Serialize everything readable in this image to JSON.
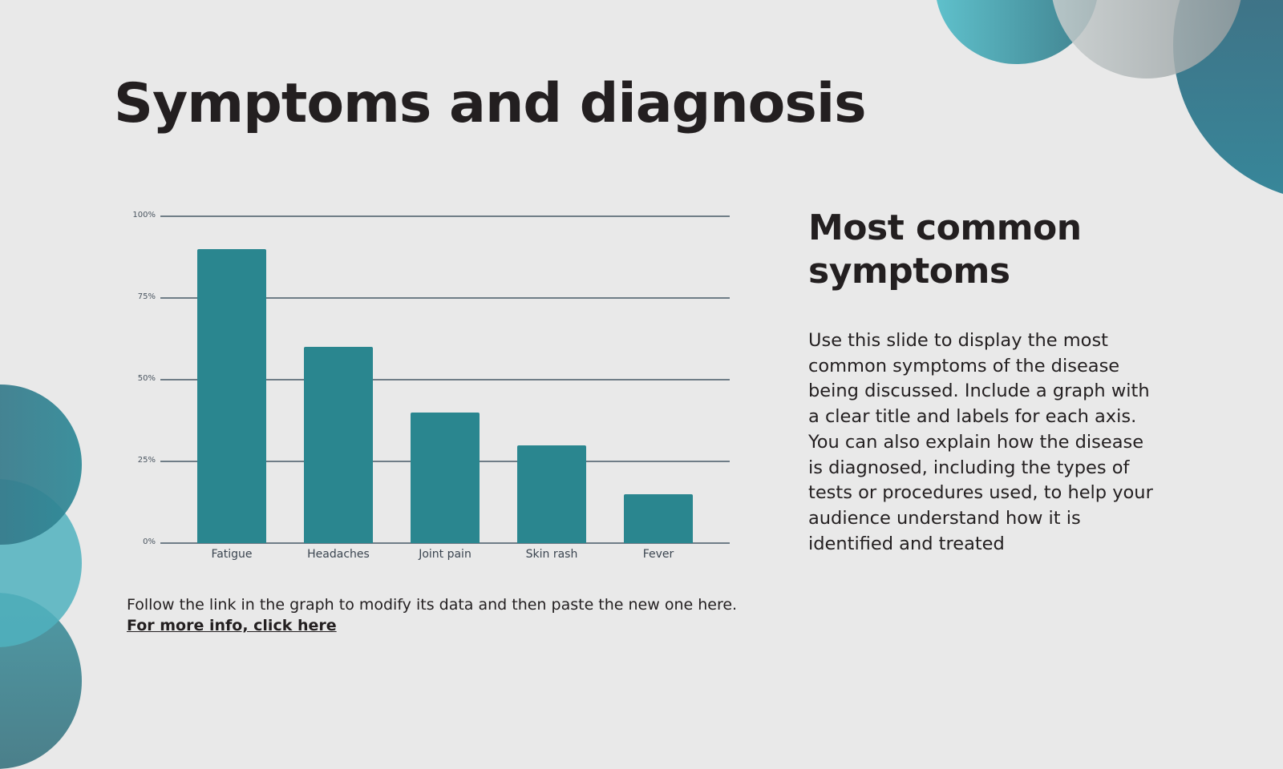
{
  "slide": {
    "title": "Symptoms and diagnosis",
    "subtitle_line1": "Most common",
    "subtitle_line2": "symptoms",
    "body": "Use this slide to display the most common symptoms of the disease being discussed. Include a graph with a clear title and labels for each axis. You can also explain how the disease is diagnosed, including the types of tests or procedures used, to help your audience understand how it is identified and treated",
    "caption": "Follow the link in the graph to modify its data and then paste the new one here.",
    "link_text": "For more info, click here"
  },
  "colors": {
    "bar": "#2a868f",
    "background": "#e9e9e9",
    "text": "#231f20",
    "gridline": "#6f7d87"
  },
  "chart_data": {
    "type": "bar",
    "title": "",
    "xlabel": "",
    "ylabel": "",
    "categories": [
      "Fatigue",
      "Headaches",
      "Joint pain",
      "Skin rash",
      "Fever"
    ],
    "values": [
      90,
      60,
      40,
      30,
      15
    ],
    "unit": "%",
    "yticks": [
      "0%",
      "25%",
      "50%",
      "75%",
      "100%"
    ],
    "ylim": [
      0,
      100
    ],
    "grid": true,
    "legend": "none"
  }
}
